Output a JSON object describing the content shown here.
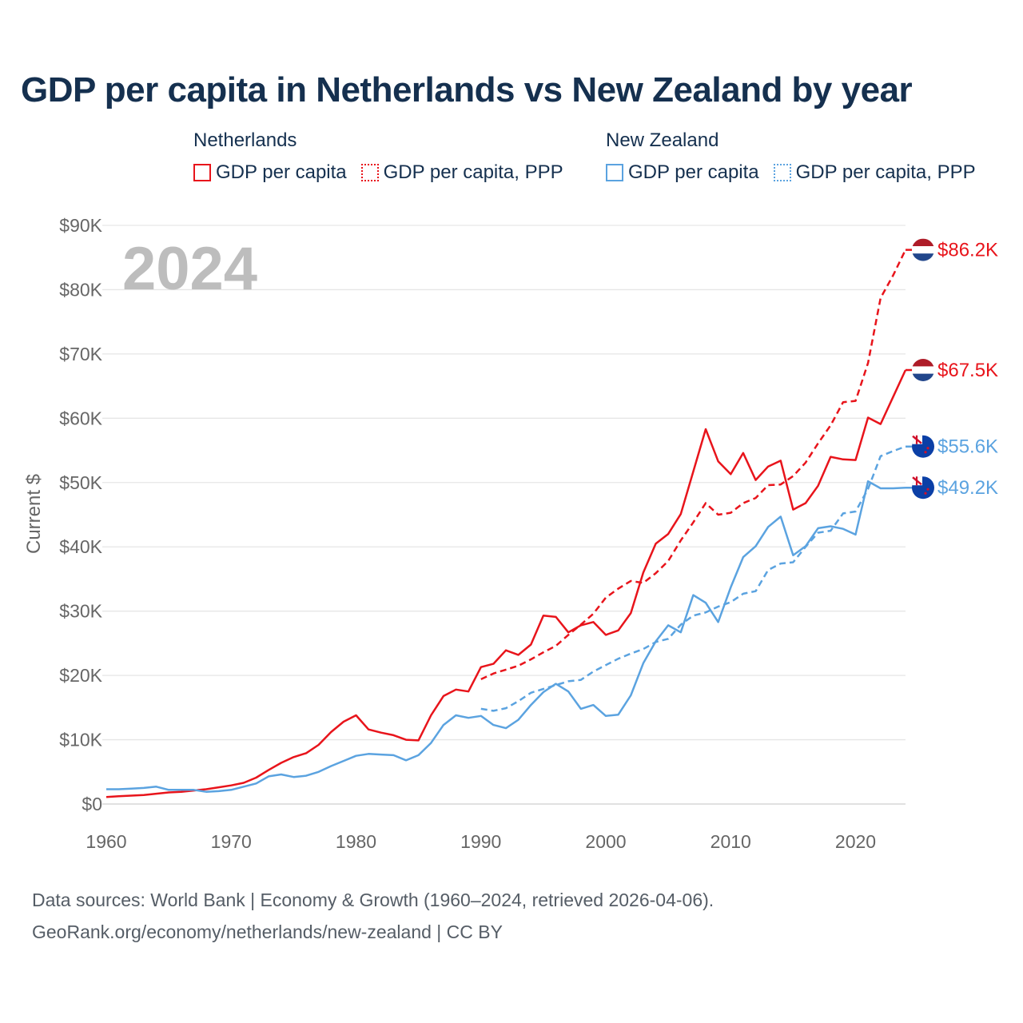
{
  "title": "GDP per capita in Netherlands vs New Zealand by year",
  "legend": {
    "groups": [
      {
        "name": "Netherlands",
        "color": "#e8141b",
        "items": [
          {
            "label": "GDP per capita",
            "style": "solid"
          },
          {
            "label": "GDP per capita, PPP",
            "style": "dotted"
          }
        ]
      },
      {
        "name": "New Zealand",
        "color": "#5ba3e0",
        "items": [
          {
            "label": "GDP per capita",
            "style": "solid"
          },
          {
            "label": "GDP per capita, PPP",
            "style": "dotted"
          }
        ]
      }
    ]
  },
  "footer": {
    "line1": "Data sources: World Bank | Economy & Growth (1960–2024, retrieved 2026-04-06).",
    "line2": "GeoRank.org/economy/netherlands/new-zealand | CC BY"
  },
  "chart_data": {
    "type": "line",
    "title": "GDP per capita in Netherlands vs New Zealand by year",
    "ylabel": "Current $",
    "xlabel": "",
    "year_label": "2024",
    "xlim": [
      1960,
      2024
    ],
    "ylim": [
      0,
      90000
    ],
    "xticks": [
      1960,
      1970,
      1980,
      1990,
      2000,
      2010,
      2020
    ],
    "yticks": [
      0,
      10000,
      20000,
      30000,
      40000,
      50000,
      60000,
      70000,
      80000,
      90000
    ],
    "ytick_labels": [
      "$0",
      "$10K",
      "$20K",
      "$30K",
      "$40K",
      "$50K",
      "$60K",
      "$70K",
      "$80K",
      "$90K"
    ],
    "grid": true,
    "series": [
      {
        "name": "Netherlands GDP per capita",
        "color": "#e8141b",
        "dash": "solid",
        "end_label": "$67.5K",
        "flag": "netherlands",
        "x": [
          1960,
          1961,
          1962,
          1963,
          1964,
          1965,
          1966,
          1967,
          1968,
          1969,
          1970,
          1971,
          1972,
          1973,
          1974,
          1975,
          1976,
          1977,
          1978,
          1979,
          1980,
          1981,
          1982,
          1983,
          1984,
          1985,
          1986,
          1987,
          1988,
          1989,
          1990,
          1991,
          1992,
          1993,
          1994,
          1995,
          1996,
          1997,
          1998,
          1999,
          2000,
          2001,
          2002,
          2003,
          2004,
          2005,
          2006,
          2007,
          2008,
          2009,
          2010,
          2011,
          2012,
          2013,
          2014,
          2015,
          2016,
          2017,
          2018,
          2019,
          2020,
          2021,
          2022,
          2023,
          2024
        ],
        "values": [
          1100,
          1200,
          1300,
          1400,
          1600,
          1800,
          1900,
          2100,
          2300,
          2600,
          2900,
          3300,
          4100,
          5300,
          6400,
          7300,
          7900,
          9200,
          11200,
          12800,
          13800,
          11600,
          11100,
          10700,
          10000,
          9900,
          13800,
          16800,
          17800,
          17500,
          21300,
          21800,
          23900,
          23200,
          24800,
          29300,
          29100,
          26700,
          27800,
          28300,
          26300,
          27000,
          29700,
          36000,
          40500,
          42000,
          45100,
          51700,
          58300,
          53300,
          51300,
          54600,
          50400,
          52500,
          53400,
          45800,
          46800,
          49500,
          54000,
          53600,
          53500,
          60100,
          59100,
          63300,
          67500
        ]
      },
      {
        "name": "Netherlands GDP per capita, PPP",
        "color": "#e8141b",
        "dash": "dashed",
        "end_label": "$86.2K",
        "flag": "netherlands",
        "x": [
          1990,
          1991,
          1992,
          1993,
          1994,
          1995,
          1996,
          1997,
          1998,
          1999,
          2000,
          2001,
          2002,
          2003,
          2004,
          2005,
          2006,
          2007,
          2008,
          2009,
          2010,
          2011,
          2012,
          2013,
          2014,
          2015,
          2016,
          2017,
          2018,
          2019,
          2020,
          2021,
          2022,
          2023,
          2024
        ],
        "values": [
          19400,
          20300,
          20900,
          21500,
          22500,
          23600,
          24600,
          26300,
          27900,
          29600,
          32100,
          33500,
          34700,
          34400,
          35900,
          37800,
          41000,
          43800,
          46800,
          45000,
          45300,
          46800,
          47600,
          49600,
          49700,
          51000,
          53100,
          56100,
          58900,
          62500,
          62700,
          68600,
          78700,
          82200,
          86200
        ]
      },
      {
        "name": "New Zealand GDP per capita",
        "color": "#5ba3e0",
        "dash": "solid",
        "end_label": "$49.2K",
        "flag": "newzealand",
        "x": [
          1960,
          1961,
          1962,
          1963,
          1964,
          1965,
          1966,
          1967,
          1968,
          1969,
          1970,
          1971,
          1972,
          1973,
          1974,
          1975,
          1976,
          1977,
          1978,
          1979,
          1980,
          1981,
          1982,
          1983,
          1984,
          1985,
          1986,
          1987,
          1988,
          1989,
          1990,
          1991,
          1992,
          1993,
          1994,
          1995,
          1996,
          1997,
          1998,
          1999,
          2000,
          2001,
          2002,
          2003,
          2004,
          2005,
          2006,
          2007,
          2008,
          2009,
          2010,
          2011,
          2012,
          2013,
          2014,
          2015,
          2016,
          2017,
          2018,
          2019,
          2020,
          2021,
          2022,
          2023,
          2024
        ],
        "values": [
          2300,
          2300,
          2400,
          2500,
          2700,
          2200,
          2200,
          2200,
          1900,
          2000,
          2200,
          2700,
          3200,
          4300,
          4600,
          4200,
          4400,
          5000,
          5900,
          6700,
          7500,
          7800,
          7700,
          7600,
          6800,
          7600,
          9500,
          12300,
          13800,
          13400,
          13700,
          12300,
          11800,
          13100,
          15400,
          17400,
          18700,
          17500,
          14800,
          15400,
          13700,
          13900,
          16900,
          21900,
          25300,
          27800,
          26700,
          32500,
          31300,
          28300,
          33700,
          38400,
          40100,
          43100,
          44700,
          38700,
          40100,
          42900,
          43200,
          42800,
          41900,
          50200,
          49100,
          49100,
          49200
        ]
      },
      {
        "name": "New Zealand GDP per capita, PPP",
        "color": "#5ba3e0",
        "dash": "dashed",
        "end_label": "$55.6K",
        "flag": "newzealand",
        "x": [
          1990,
          1991,
          1992,
          1993,
          1994,
          1995,
          1996,
          1997,
          1998,
          1999,
          2000,
          2001,
          2002,
          2003,
          2004,
          2005,
          2006,
          2007,
          2008,
          2009,
          2010,
          2011,
          2012,
          2013,
          2014,
          2015,
          2016,
          2017,
          2018,
          2019,
          2020,
          2021,
          2022,
          2023,
          2024
        ],
        "values": [
          14800,
          14500,
          14900,
          16000,
          17300,
          17900,
          18500,
          19100,
          19300,
          20600,
          21600,
          22600,
          23400,
          24100,
          25200,
          25700,
          27900,
          29300,
          29800,
          30700,
          31400,
          32700,
          33100,
          36400,
          37400,
          37600,
          40000,
          42200,
          42500,
          45200,
          45500,
          49000,
          54100,
          54900,
          55600
        ]
      }
    ]
  }
}
